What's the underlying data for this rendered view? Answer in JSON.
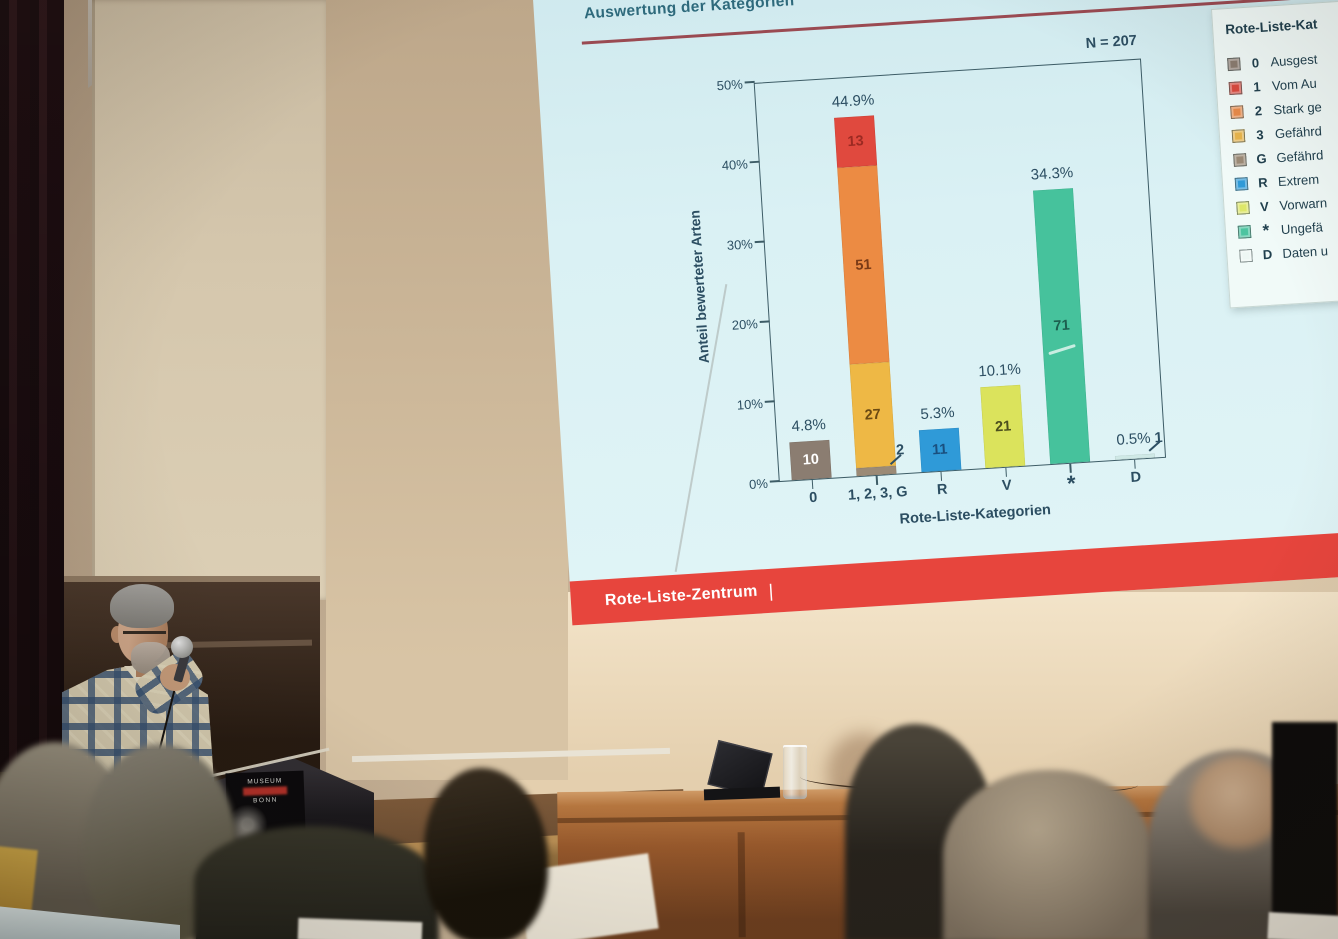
{
  "slide": {
    "title": "Auswertung der Kategorien",
    "footer": {
      "brand": "Rote-Liste-Zentrum",
      "divider": "|"
    },
    "legend": {
      "header": "Rote-Liste-Kat",
      "items": [
        {
          "key": "0",
          "label": "Ausgest",
          "color": "#8a7c70"
        },
        {
          "key": "1",
          "label": "Vom Au",
          "color": "#d94a3f"
        },
        {
          "key": "2",
          "label": "Stark ge",
          "color": "#e88a4a"
        },
        {
          "key": "3",
          "label": "Gefährd",
          "color": "#e7b44c"
        },
        {
          "key": "G",
          "label": "Gefährd",
          "color": "#9b8a76"
        },
        {
          "key": "R",
          "label": "Extrem",
          "color": "#2f9ad8"
        },
        {
          "key": "V",
          "label": "Vorwarn",
          "color": "#dde76a"
        },
        {
          "key": "*",
          "label": "Ungefä",
          "color": "#4cc4a0"
        },
        {
          "key": "D",
          "label": "Daten u",
          "color": "#eef7f4"
        }
      ]
    }
  },
  "chart_data": {
    "type": "bar",
    "title": "Auswertung der Kategorien",
    "n_label": "N = 207",
    "n_total": 207,
    "xlabel": "Rote-Liste-Kategorien",
    "ylabel": "Anteil bewerteter Arten",
    "ylim": [
      0,
      50
    ],
    "yticks": [
      "0%",
      "10%",
      "20%",
      "30%",
      "40%",
      "50%"
    ],
    "grid": false,
    "legend_position": "right",
    "bars": [
      {
        "category": "0",
        "pct": 4.8,
        "pct_label": "4.8%",
        "segments": [
          {
            "value": 10,
            "label": "10",
            "color": "#8b7d71",
            "label_color": "#ffffff",
            "label_bold": true
          }
        ]
      },
      {
        "category": "1, 2, 3, G",
        "pct": 44.9,
        "pct_label": "44.9%",
        "segments": [
          {
            "value": 2,
            "label": "2",
            "color": "#9b8a76",
            "label_color": "#2d4f63",
            "label_outside": true
          },
          {
            "value": 27,
            "label": "27",
            "color": "#eeb845",
            "label_color": "#6b4a12"
          },
          {
            "value": 51,
            "label": "51",
            "color": "#ec8b43",
            "label_color": "#7a3a16"
          },
          {
            "value": 13,
            "label": "13",
            "color": "#e0493e",
            "label_color": "#9c2a22"
          }
        ]
      },
      {
        "category": "R",
        "pct": 5.3,
        "pct_label": "5.3%",
        "segments": [
          {
            "value": 11,
            "label": "11",
            "color": "#2f9ad8",
            "label_color": "#1a4f7e"
          }
        ]
      },
      {
        "category": "V",
        "pct": 10.1,
        "pct_label": "10.1%",
        "segments": [
          {
            "value": 21,
            "label": "21",
            "color": "#dbe35c",
            "label_color": "#4c4f1e"
          }
        ]
      },
      {
        "category": "*",
        "pct": 34.3,
        "pct_label": "34.3%",
        "segments": [
          {
            "value": 71,
            "label": "71",
            "color": "#46c29c",
            "label_color": "#1c5f4e"
          }
        ]
      },
      {
        "category": "D",
        "pct": 0.5,
        "pct_label": "0.5%",
        "segments": [
          {
            "value": 1,
            "label": "1",
            "color": "#cfe9e6",
            "label_color": "#2d4f63",
            "label_outside": true
          }
        ]
      }
    ]
  },
  "poster": {
    "line1": "MUSEUM",
    "line2": "BONN",
    "date_line1": "24.10.2025 –",
    "date_line2": "06.04.2026"
  },
  "accent_colors": {
    "slide_background": "#daf1f4",
    "slide_text": "#2c4e62",
    "title_underline": "#9a4a52",
    "footer_bar": "#e7453d"
  }
}
